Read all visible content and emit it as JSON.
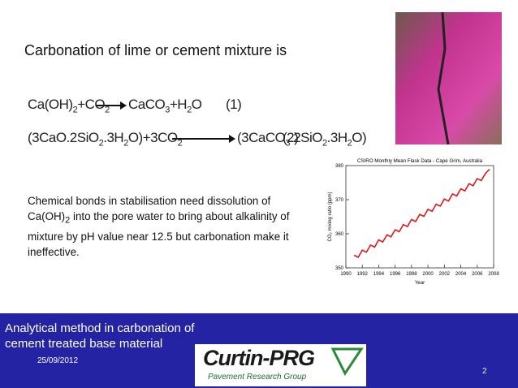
{
  "title": "Carbonation of lime or cement mixture is",
  "equations": [
    {
      "left": [
        "Ca(OH)",
        "2",
        "+CO",
        "2"
      ],
      "right": [
        "CaCO",
        "3",
        "+H",
        "2",
        "O"
      ],
      "number": "(1)"
    },
    {
      "left": [
        "(3CaO.2SiO",
        "2",
        ".3H",
        "2",
        "O)+3CO",
        "2"
      ],
      "right": [
        "(3CaCO",
        "3",
        ".2SiO",
        "2",
        ".3H",
        "2",
        "O)"
      ],
      "number": "(2)"
    }
  ],
  "body": [
    "Chemical bonds in stabilisation need dissolution of Ca(OH)",
    "2",
    " into the pore water to bring about  alkalinity of mixture by pH value near 12.5 but carbonation make it ineffective."
  ],
  "figure": {
    "type": "line",
    "title": "CSIRO Monthly Mean Flask Data - Cape Grim, Australia",
    "xlabel": "Year",
    "ylabel": "CO₂ mixing ratio (ppm)",
    "xlim": [
      1990,
      2008
    ],
    "xticks": [
      1990,
      1992,
      1994,
      1996,
      1998,
      2000,
      2002,
      2004,
      2006,
      2008
    ],
    "ylim": [
      350,
      380
    ],
    "yticks": [
      350,
      360,
      370,
      380
    ],
    "color": "#d81b1b",
    "x": [
      1991,
      1991.5,
      1992,
      1992.5,
      1993,
      1993.5,
      1994,
      1994.5,
      1995,
      1995.5,
      1996,
      1996.5,
      1997,
      1997.5,
      1998,
      1998.5,
      1999,
      1999.5,
      2000,
      2000.5,
      2001,
      2001.5,
      2002,
      2002.5,
      2003,
      2003.5,
      2004,
      2004.5,
      2005,
      2005.5,
      2006,
      2006.5,
      2007,
      2007.5
    ],
    "values": [
      353.7,
      353.1,
      355.2,
      354.6,
      356.7,
      356.1,
      358.2,
      357.6,
      359.7,
      359.1,
      361.2,
      360.6,
      362.7,
      362.1,
      364.2,
      363.6,
      365.7,
      365.1,
      367.2,
      366.6,
      368.7,
      368.1,
      370.2,
      369.6,
      371.7,
      371.1,
      373.2,
      372.6,
      374.7,
      374.1,
      376.2,
      375.6,
      377.7,
      378.9
    ]
  },
  "footer": {
    "title": "Analytical method in carbonation of cement treated base material",
    "date": "25/09/2012",
    "page": "2",
    "logo": {
      "name": "Curtin-PRG",
      "subtitle": "Pavement Research Group"
    }
  }
}
